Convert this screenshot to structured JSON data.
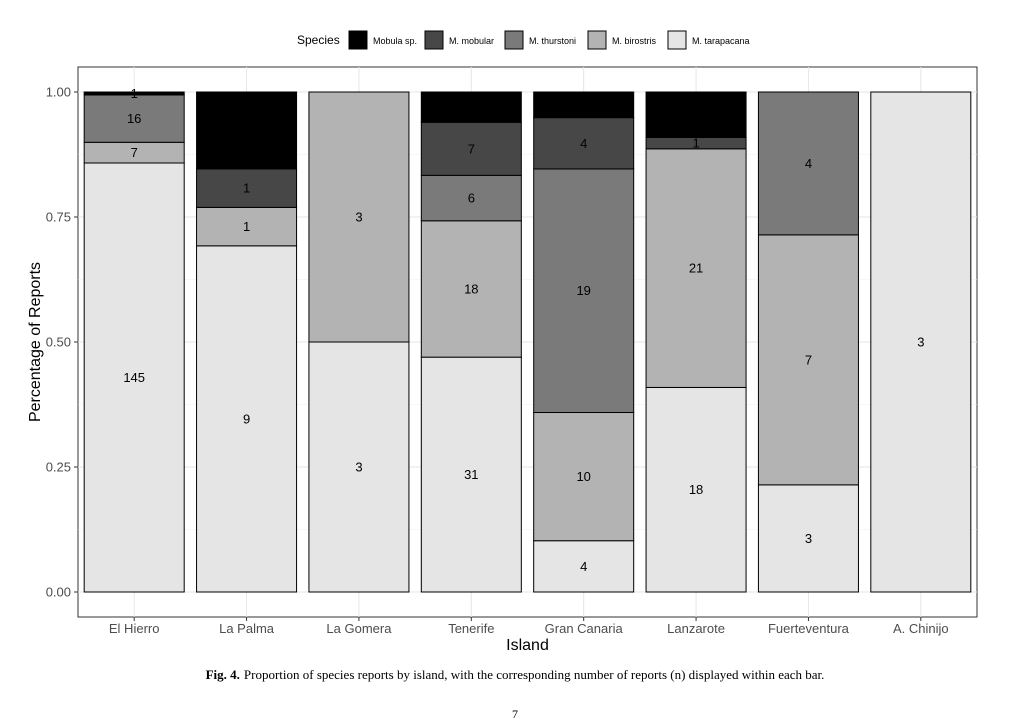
{
  "chart_data": {
    "type": "bar",
    "stacked": "percent",
    "xlabel": "Island",
    "ylabel": "Percentage of Reports",
    "ylim": [
      0,
      1
    ],
    "yticks": [
      "0.00",
      "0.25",
      "0.50",
      "0.75",
      "1.00"
    ],
    "ytick_values": [
      0,
      0.25,
      0.5,
      0.75,
      1
    ],
    "legend_title": "Species",
    "legend_position": "top",
    "grid": true,
    "categories": [
      "El Hierro",
      "La Palma",
      "La Gomera",
      "Tenerife",
      "Gran Canaria",
      "Lanzarote",
      "Fuerteventura",
      "A. Chinijo"
    ],
    "series": [
      {
        "name": "M. tarapacana",
        "key": "tarapacana",
        "color": "#e5e5e5",
        "values": [
          145,
          9,
          3,
          31,
          4,
          18,
          3,
          3
        ]
      },
      {
        "name": "M. birostris",
        "key": "birostris",
        "color": "#b3b3b3",
        "values": [
          7,
          1,
          3,
          18,
          10,
          21,
          7,
          0
        ]
      },
      {
        "name": "M. thurstoni",
        "key": "thurstoni",
        "color": "#7a7a7a",
        "values": [
          16,
          0,
          0,
          6,
          19,
          0,
          4,
          0
        ]
      },
      {
        "name": "M. mobular",
        "key": "mobular",
        "color": "#474747",
        "values": [
          0,
          1,
          0,
          7,
          4,
          1,
          0,
          0
        ]
      },
      {
        "name": "Mobula sp.",
        "key": "mobula_sp",
        "color": "#000000",
        "values": [
          1,
          2,
          0,
          4,
          2,
          4,
          0,
          0
        ]
      }
    ],
    "legend_order": [
      "Mobula sp.",
      "M. mobular",
      "M. thurstoni",
      "M. birostris",
      "M. tarapacana"
    ],
    "legend_colors": [
      "#000000",
      "#474747",
      "#7a7a7a",
      "#b3b3b3",
      "#e5e5e5"
    ]
  },
  "caption": {
    "label": "Fig. 4.",
    "text": "Proportion of species reports by island, with the corresponding number of reports (n) displayed within each bar."
  },
  "page_number": "7"
}
